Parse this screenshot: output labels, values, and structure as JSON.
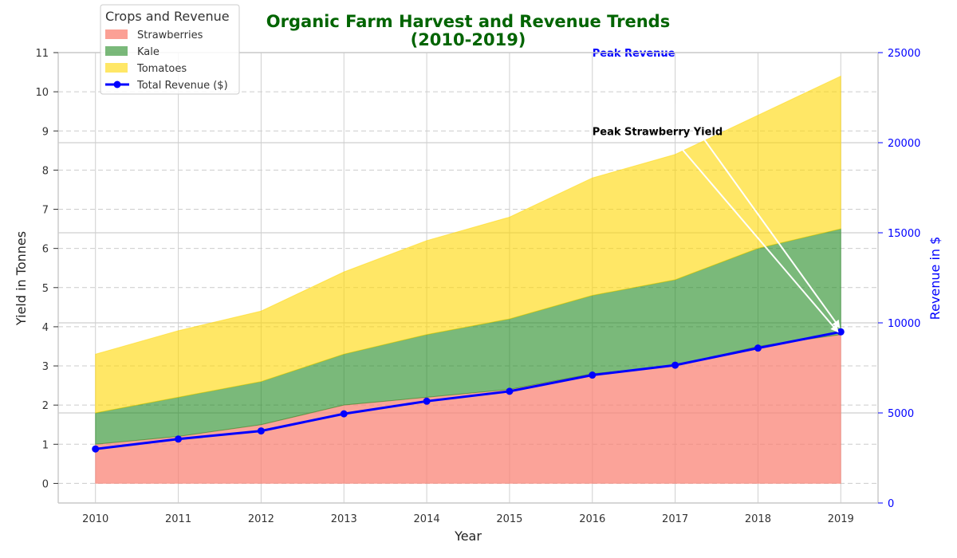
{
  "chart_data": {
    "type": "area",
    "title_lines": [
      "Organic Farm Harvest and Revenue Trends",
      "(2010-2019)"
    ],
    "xlabel": "Year",
    "ylabel": "Yield in Tonnes",
    "ylabel_right": "Revenue in $",
    "x": [
      2010,
      2011,
      2012,
      2013,
      2014,
      2015,
      2016,
      2017,
      2018,
      2019
    ],
    "ylim": [
      -0.5,
      11
    ],
    "ylim_right": [
      0,
      25000
    ],
    "yticks": [
      0,
      1,
      2,
      3,
      4,
      5,
      6,
      7,
      8,
      9,
      10,
      11
    ],
    "yticks_right": [
      0,
      5000,
      10000,
      15000,
      20000,
      25000
    ],
    "stacked": true,
    "grid": true,
    "legend_title": "Crops and Revenue",
    "legend_position": "top-left",
    "series": [
      {
        "name": "Strawberries",
        "color": "#fa8072",
        "values": [
          1.0,
          1.2,
          1.5,
          2.0,
          2.2,
          2.4,
          2.8,
          3.0,
          3.5,
          3.8
        ]
      },
      {
        "name": "Kale",
        "color": "#228b22",
        "values": [
          0.8,
          1.0,
          1.1,
          1.3,
          1.6,
          1.8,
          2.0,
          2.2,
          2.5,
          2.7
        ]
      },
      {
        "name": "Tomatoes",
        "color": "#ffd700",
        "values": [
          1.5,
          1.7,
          1.8,
          2.1,
          2.4,
          2.6,
          3.0,
          3.2,
          3.4,
          3.9
        ]
      }
    ],
    "line_series": {
      "name": "Total Revenue ($)",
      "axis": "right",
      "color": "#0000ff",
      "values": [
        3000,
        3550,
        4000,
        4950,
        5650,
        6200,
        7100,
        7650,
        8600,
        9500
      ]
    },
    "annotations": [
      {
        "text": "Peak Strawberry Yield",
        "color": "#000000",
        "x": 2016,
        "y": 9.0,
        "target_x": 2019,
        "target_y": 3.8
      },
      {
        "text": "Peak Revenue",
        "color": "#0000ff",
        "x": 2016,
        "y": 11.0,
        "target_x": 2019,
        "target_y": 9500
      }
    ]
  }
}
